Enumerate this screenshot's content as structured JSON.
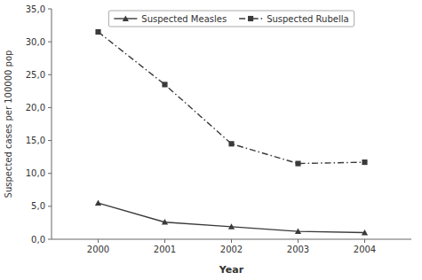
{
  "chart_data": {
    "type": "line",
    "xlabel": "Year",
    "ylabel": "Suspected cases per 100000 pop",
    "x": [
      2000,
      2001,
      2002,
      2003,
      2004
    ],
    "xlim": [
      1999.3,
      2004.7
    ],
    "xticks": [
      2000,
      2001,
      2002,
      2003,
      2004
    ],
    "ylim": [
      0,
      35
    ],
    "yticks": [
      {
        "value": 0.0,
        "label": "0,0"
      },
      {
        "value": 5.0,
        "label": "5,0"
      },
      {
        "value": 10.0,
        "label": "10,0"
      },
      {
        "value": 15.0,
        "label": "15,0"
      },
      {
        "value": 20.0,
        "label": "20,0"
      },
      {
        "value": 25.0,
        "label": "25,0"
      },
      {
        "value": 30.0,
        "label": "30,0"
      },
      {
        "value": 35.0,
        "label": "35,0"
      }
    ],
    "series": [
      {
        "name": "Suspected Measles",
        "color": "#3a3a3a",
        "marker": "triangle",
        "line_style": "solid",
        "values": [
          5.5,
          2.6,
          1.9,
          1.2,
          1.0
        ]
      },
      {
        "name": "Suspected Rubella",
        "color": "#3a3a3a",
        "marker": "square",
        "line_style": "dashdot",
        "values": [
          31.5,
          23.5,
          14.5,
          11.5,
          11.7
        ]
      }
    ],
    "legend": "top",
    "grid": false
  }
}
